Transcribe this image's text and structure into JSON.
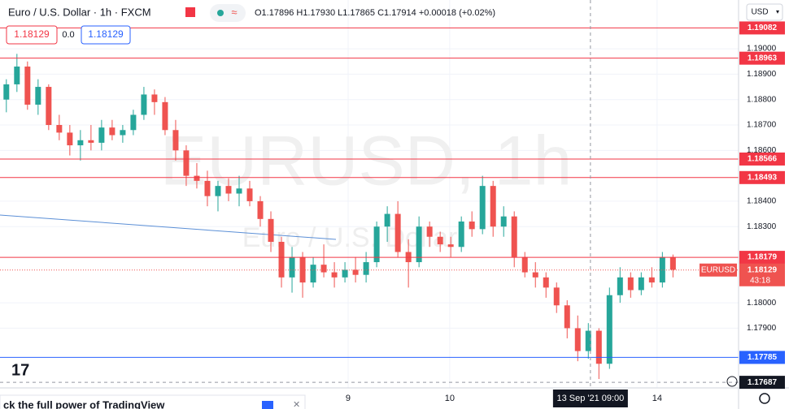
{
  "chart_data": {
    "type": "candlestick",
    "title": "Euro / U.S. Dollar · 1h · FXCM",
    "ohlc_legend": "O1.17896 H1.17930 L1.17865 C1.17914 +0.00018 (+0.02%)",
    "watermark": "EURUSD, 1h",
    "watermark_subtitle": "Euro / U.S. Dollar",
    "currency": "USD",
    "trade_panel": {
      "sell": "1.18129",
      "spread": "0.0",
      "buy": "1.18129"
    },
    "banner": "ck the full power of TradingView",
    "up_color": "#26a69a",
    "down_color": "#ef5350",
    "ylim": [
      1.17665,
      1.19192
    ],
    "xlim": [
      -0.6,
      69.2
    ],
    "yticks": [
      {
        "value": 1.19,
        "label": "1.19000"
      },
      {
        "value": 1.189,
        "label": "1.18900"
      },
      {
        "value": 1.188,
        "label": "1.18800"
      },
      {
        "value": 1.187,
        "label": "1.18700"
      },
      {
        "value": 1.186,
        "label": "1.18600"
      },
      {
        "value": 1.184,
        "label": "1.18400"
      },
      {
        "value": 1.183,
        "label": "1.18300"
      },
      {
        "value": 1.18,
        "label": "1.18000"
      },
      {
        "value": 1.179,
        "label": "1.17900"
      }
    ],
    "xticks": [
      {
        "value": 32.3,
        "label": "9"
      },
      {
        "value": 41.9,
        "label": "10"
      },
      {
        "value": 61.5,
        "label": "14"
      }
    ],
    "series": {
      "open": [
        1.188,
        1.1886,
        1.1893,
        1.1878,
        1.1885,
        1.187,
        1.1867,
        1.1862,
        1.1864,
        1.1863,
        1.1869,
        1.1866,
        1.1868,
        1.1874,
        1.1882,
        1.1879,
        1.1868,
        1.186,
        1.185,
        1.1848,
        1.1842,
        1.1846,
        1.1843,
        1.1845,
        1.184,
        1.1833,
        1.1824,
        1.181,
        1.1818,
        1.1808,
        1.1815,
        1.1812,
        1.181,
        1.1813,
        1.1811,
        1.1816,
        1.183,
        1.1835,
        1.182,
        1.1816,
        1.183,
        1.1826,
        1.1823,
        1.1822,
        1.1832,
        1.1829,
        1.1846,
        1.183,
        1.1834,
        1.1818,
        1.1812,
        1.181,
        1.1806,
        1.1799,
        1.179,
        1.1781,
        1.1789,
        1.1776,
        1.1803,
        1.181,
        1.1805,
        1.181,
        1.1808,
        1.1818
      ],
      "high": [
        1.1888,
        1.1898,
        1.1895,
        1.1888,
        1.1886,
        1.1874,
        1.187,
        1.1868,
        1.187,
        1.1872,
        1.1872,
        1.187,
        1.1876,
        1.1885,
        1.1884,
        1.1881,
        1.1872,
        1.1862,
        1.1855,
        1.1852,
        1.1848,
        1.1849,
        1.185,
        1.1848,
        1.1842,
        1.1836,
        1.1826,
        1.1822,
        1.182,
        1.1818,
        1.1823,
        1.1816,
        1.1816,
        1.1818,
        1.182,
        1.1832,
        1.1838,
        1.184,
        1.1825,
        1.1834,
        1.1832,
        1.1828,
        1.1826,
        1.1834,
        1.1836,
        1.185,
        1.1848,
        1.1838,
        1.1836,
        1.182,
        1.1816,
        1.1812,
        1.1808,
        1.1801,
        1.1795,
        1.1792,
        1.179,
        1.1806,
        1.1814,
        1.1812,
        1.1812,
        1.1814,
        1.182,
        1.1819
      ],
      "low": [
        1.1875,
        1.1883,
        1.1876,
        1.1874,
        1.1868,
        1.1864,
        1.1858,
        1.1856,
        1.186,
        1.186,
        1.1864,
        1.1863,
        1.1866,
        1.1872,
        1.1874,
        1.1866,
        1.1856,
        1.1846,
        1.1845,
        1.1838,
        1.1836,
        1.184,
        1.1838,
        1.1838,
        1.183,
        1.182,
        1.1806,
        1.1804,
        1.1802,
        1.1806,
        1.181,
        1.1806,
        1.1808,
        1.1808,
        1.1808,
        1.1814,
        1.1824,
        1.1818,
        1.1806,
        1.1814,
        1.1822,
        1.182,
        1.1818,
        1.182,
        1.1826,
        1.1827,
        1.1826,
        1.1826,
        1.1814,
        1.181,
        1.1806,
        1.1802,
        1.1796,
        1.1786,
        1.1777,
        1.1778,
        1.177,
        1.1774,
        1.18,
        1.1802,
        1.1803,
        1.1806,
        1.1806,
        1.181
      ],
      "close": [
        1.1886,
        1.1893,
        1.1878,
        1.1885,
        1.187,
        1.1867,
        1.1862,
        1.1864,
        1.1863,
        1.1869,
        1.1866,
        1.1868,
        1.1874,
        1.1882,
        1.1879,
        1.1868,
        1.186,
        1.185,
        1.1848,
        1.1842,
        1.1846,
        1.1843,
        1.1845,
        1.184,
        1.1833,
        1.1824,
        1.181,
        1.1818,
        1.1808,
        1.1815,
        1.1812,
        1.181,
        1.1813,
        1.1811,
        1.1816,
        1.183,
        1.1835,
        1.182,
        1.1816,
        1.183,
        1.1826,
        1.1823,
        1.1822,
        1.1832,
        1.1829,
        1.1846,
        1.183,
        1.1834,
        1.1818,
        1.1812,
        1.181,
        1.1806,
        1.1799,
        1.179,
        1.1781,
        1.1789,
        1.1776,
        1.1803,
        1.181,
        1.1805,
        1.181,
        1.1808,
        1.1818,
        1.1813
      ]
    },
    "levels": [
      {
        "value": 1.19082,
        "color": "#f23645"
      },
      {
        "value": 1.18963,
        "color": "#f23645"
      },
      {
        "value": 1.18566,
        "color": "#f23645"
      },
      {
        "value": 1.18493,
        "color": "#f23645"
      },
      {
        "value": 1.18179,
        "color": "#f23645"
      },
      {
        "value": 1.17785,
        "color": "#2962ff"
      }
    ],
    "last_price": {
      "name": "EURUSD",
      "value": 1.18129,
      "countdown": "43:18",
      "color": "#ef5350"
    },
    "crosshair": {
      "x": 55.2,
      "x_label": "13 Sep '21 09:00",
      "y": 1.17687
    }
  }
}
